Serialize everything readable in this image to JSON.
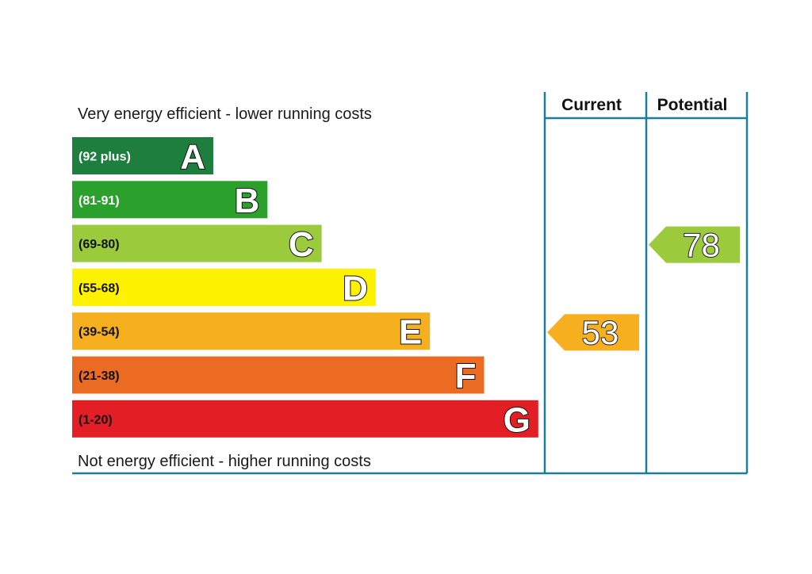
{
  "chart_data": {
    "type": "bar",
    "top_caption": "Very energy efficient - lower running costs",
    "bottom_caption": "Not energy efficient - higher running costs",
    "columns": [
      "Current",
      "Potential"
    ],
    "bands": [
      {
        "letter": "A",
        "range": "(92 plus)",
        "min": 92,
        "max": 100,
        "color": "#1e7e3e",
        "range_color": "#ffffff"
      },
      {
        "letter": "B",
        "range": "(81-91)",
        "min": 81,
        "max": 91,
        "color": "#2ca02c",
        "range_color": "#ffffff"
      },
      {
        "letter": "C",
        "range": "(69-80)",
        "min": 69,
        "max": 80,
        "color": "#9bcb3c",
        "range_color": "#111111"
      },
      {
        "letter": "D",
        "range": "(55-68)",
        "min": 55,
        "max": 68,
        "color": "#fff200",
        "range_color": "#111111"
      },
      {
        "letter": "E",
        "range": "(39-54)",
        "min": 39,
        "max": 54,
        "color": "#f6b01f",
        "range_color": "#111111"
      },
      {
        "letter": "F",
        "range": "(21-38)",
        "min": 21,
        "max": 38,
        "color": "#ec6b23",
        "range_color": "#111111"
      },
      {
        "letter": "G",
        "range": "(1-20)",
        "min": 1,
        "max": 20,
        "color": "#e31e24",
        "range_color": "#111111"
      }
    ],
    "ratings": [
      {
        "column": "Current",
        "value": 53,
        "band": "E",
        "color": "#f6b01f"
      },
      {
        "column": "Potential",
        "value": 78,
        "band": "C",
        "color": "#9bcb3c"
      }
    ],
    "frame_color": "#1b7e9a"
  }
}
